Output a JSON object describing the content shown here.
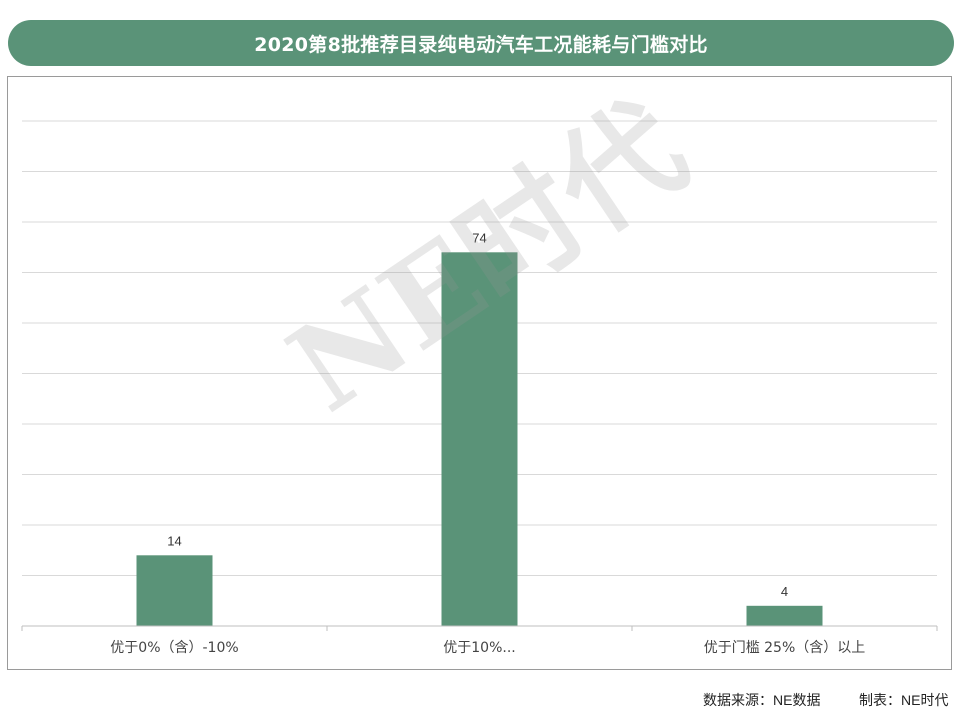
{
  "chart_data": {
    "type": "bar",
    "title": "2020第8批推荐目录纯电动汽车工况能耗与门槛对比",
    "categories": [
      "优于0%（含）-10%",
      "优于10%...",
      "优于门槛 25%（含）以上"
    ],
    "values": [
      14,
      74,
      4
    ],
    "ylim": [
      0,
      100
    ],
    "grid": true,
    "bar_color": "#5a9378"
  },
  "watermark": "NE时代",
  "footer": {
    "source": "数据来源：NE数据",
    "maker": "制表：NE时代"
  }
}
